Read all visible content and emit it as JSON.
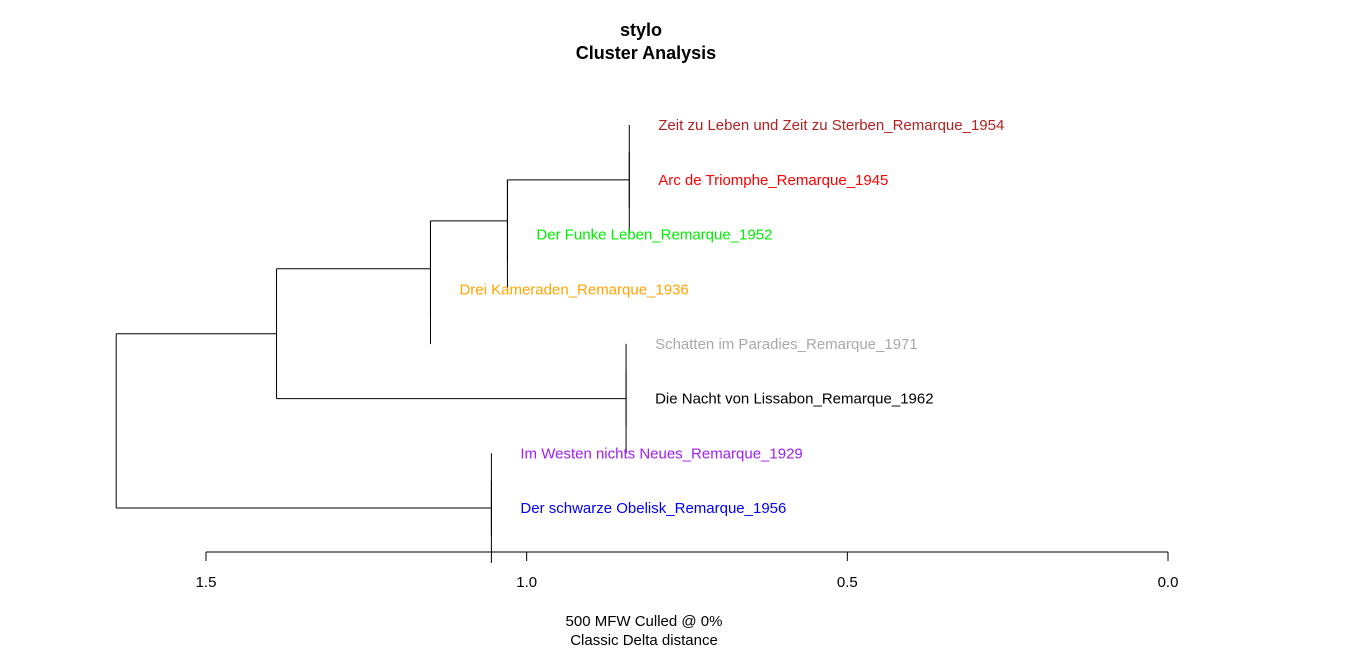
{
  "chart_data": {
    "type": "dendrogram",
    "title": "stylo",
    "subtitle": "Cluster Analysis",
    "xlabel_lines": [
      "500 MFW  Culled @ 0%",
      "Classic Delta distance"
    ],
    "xlim": [
      1.5,
      0.0
    ],
    "ticks": [
      {
        "value": 1.5,
        "label": "1.5"
      },
      {
        "value": 1.0,
        "label": "1.0"
      },
      {
        "value": 0.5,
        "label": "0.5"
      },
      {
        "value": 0.0,
        "label": "0.0"
      }
    ],
    "leaves": [
      {
        "label": "Zeit zu Leben und Zeit zu Sterben_Remarque_1954",
        "color": "#b22222"
      },
      {
        "label": "Arc de Triomphe_Remarque_1945",
        "color": "#ff0000"
      },
      {
        "label": "Der Funke Leben_Remarque_1952",
        "color": "#00ee00"
      },
      {
        "label": "Drei Kameraden_Remarque_1936",
        "color": "#ffa500"
      },
      {
        "label": "Schatten im Paradies_Remarque_1971",
        "color": "#a9a9a9"
      },
      {
        "label": "Die Nacht von Lissabon_Remarque_1962",
        "color": "#000000"
      },
      {
        "label": "Im Westen nichts Neues_Remarque_1929",
        "color": "#a020f0"
      },
      {
        "label": "Der schwarze Obelisk_Remarque_1956",
        "color": "#0000ff"
      }
    ],
    "merges": [
      {
        "id": "m1",
        "height": 0.84,
        "children": [
          "L0",
          "L1"
        ]
      },
      {
        "id": "m2",
        "height": 1.03,
        "children": [
          "m1",
          "L2"
        ]
      },
      {
        "id": "m3",
        "height": 1.15,
        "children": [
          "m2",
          "L3"
        ]
      },
      {
        "id": "m4",
        "height": 0.845,
        "children": [
          "L4",
          "L5"
        ]
      },
      {
        "id": "m5",
        "height": 1.39,
        "children": [
          "m3",
          "m4"
        ]
      },
      {
        "id": "m6",
        "height": 1.055,
        "children": [
          "L6",
          "L7"
        ]
      },
      {
        "id": "m7",
        "height": 1.64,
        "children": [
          "m5",
          "m6"
        ]
      }
    ]
  }
}
